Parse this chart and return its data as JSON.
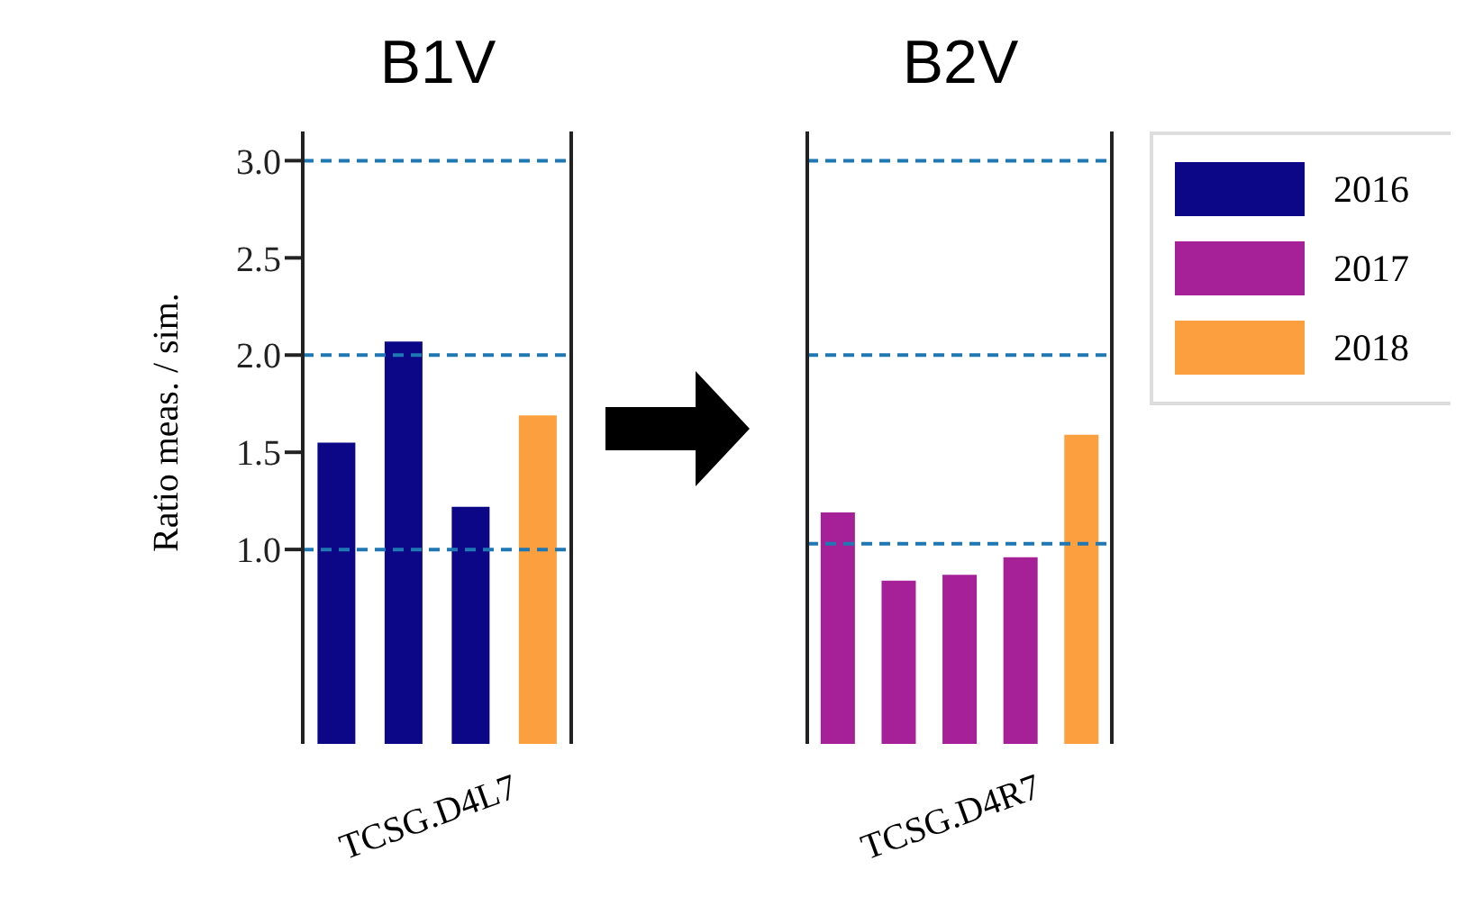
{
  "chart_data": [
    {
      "type": "bar",
      "title": "B1V",
      "xlabel": "TCSG.D4L7",
      "ylabel": "Ratio meas. / sim.",
      "categories": [
        null,
        null,
        null,
        null
      ],
      "stacked": true,
      "series": [
        {
          "name": "2016",
          "color": "#0c0786",
          "values": [
            1.55,
            2.07,
            1.22,
            null
          ]
        },
        {
          "name": "2017",
          "color": "#a62098",
          "values": [
            null,
            null,
            null,
            null
          ]
        },
        {
          "name": "2018",
          "color": "#fc9f3f",
          "values": [
            null,
            null,
            null,
            1.69
          ]
        }
      ],
      "ylim": [
        0,
        3.15
      ],
      "yticks": [
        {
          "value": 1,
          "label": "1.0"
        },
        {
          "value": 1.5,
          "label": "1.5"
        },
        {
          "value": 2,
          "label": "2.0"
        },
        {
          "value": 2.5,
          "label": "2.5"
        },
        {
          "value": 3,
          "label": "3.0"
        }
      ],
      "ref_lines": [
        {
          "axis": "y",
          "value": 1,
          "color": "#1f77b4",
          "line_style": "dashed"
        },
        {
          "axis": "y",
          "value": 2,
          "color": "#1f77b4",
          "line_style": "dashed"
        },
        {
          "axis": "y",
          "value": 3,
          "color": "#1f77b4",
          "line_style": "dashed"
        }
      ],
      "tick_labels": "y",
      "legend": "right"
    },
    {
      "type": "bar",
      "title": "B2V",
      "xlabel": "TCSG.D4R7",
      "categories": [
        null,
        null,
        null,
        null,
        null
      ],
      "series": [
        {
          "colors": [
            "#a62098",
            "#a62098",
            "#a62098",
            "#a62098",
            "#fc9f3f"
          ],
          "values": [
            1.19,
            0.84,
            0.87,
            0.96,
            1.59
          ]
        }
      ],
      "ylim": [
        0,
        3.15
      ],
      "ref_lines": [
        {
          "axis": "y",
          "value": 1.03,
          "color": "#1f77b4",
          "line_style": "dashed"
        },
        {
          "axis": "y",
          "value": 2,
          "color": "#1f77b4",
          "line_style": "dashed"
        },
        {
          "axis": "y",
          "value": 3,
          "color": "#1f77b4",
          "line_style": "dashed"
        }
      ],
      "tick_labels": false
    }
  ]
}
